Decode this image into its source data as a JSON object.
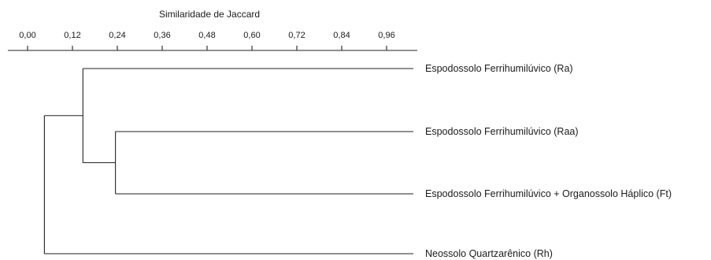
{
  "chart_data": {
    "type": "dendrogram",
    "xlabel": "Similaridade de Jaccard",
    "xlim": [
      0,
      0.96
    ],
    "ticks": [
      "0,00",
      "0,12",
      "0,24",
      "0,36",
      "0,48",
      "0,60",
      "0,72",
      "0,84",
      "0,96"
    ],
    "tick_values": [
      0,
      0.12,
      0.24,
      0.36,
      0.48,
      0.6,
      0.72,
      0.84,
      0.96
    ],
    "leaves": [
      "Espodossolo  Ferrihumilúvico (Ra)",
      "Espodossolo  Ferrihumilúvico (Raa)",
      "Espodossolo  Ferrihumilúvico + Organossolo Háplico (Ft)",
      "Neossolo  Quartzarênico (Rh)"
    ],
    "merges": [
      {
        "left": 1,
        "right": 2,
        "similarity": 0.235
      },
      {
        "left": 0,
        "right": "Raa+Ft",
        "similarity": 0.148
      },
      {
        "left": "Ra+Raa+Ft",
        "right": 3,
        "similarity": 0.045
      }
    ]
  }
}
